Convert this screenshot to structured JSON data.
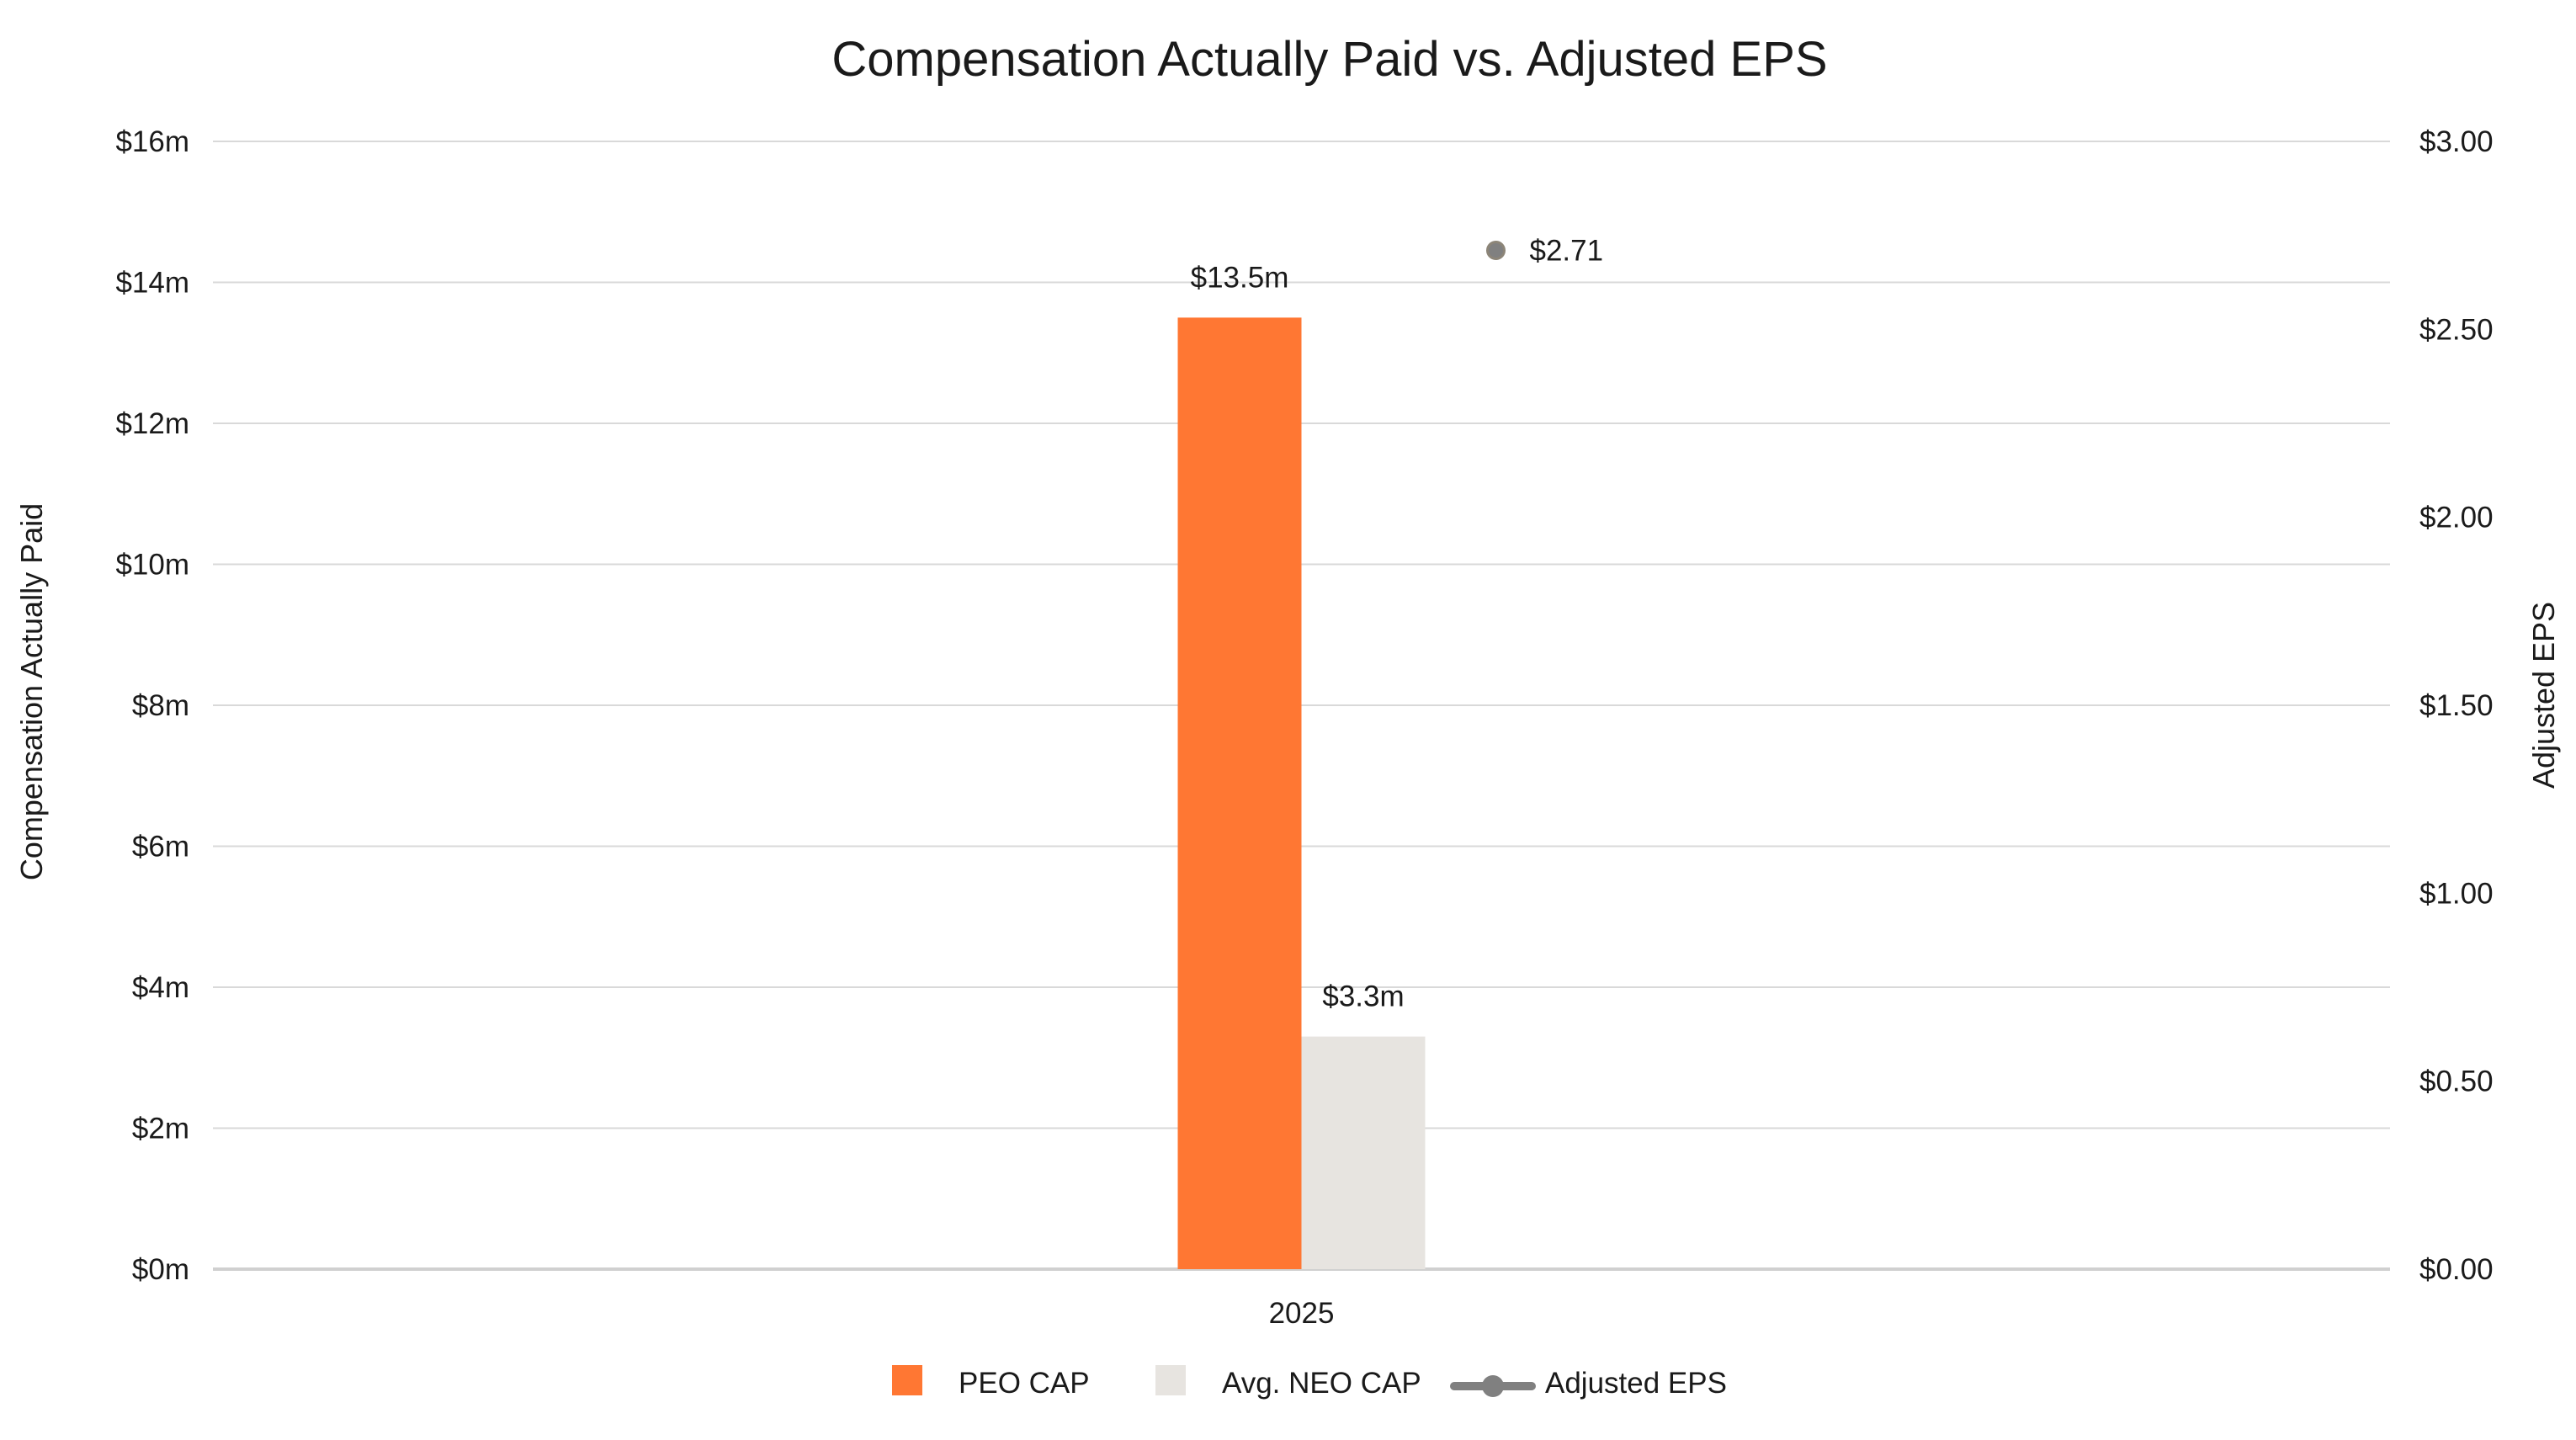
{
  "chart_data": {
    "type": "bar",
    "title": "Compensation Actually Paid vs. Adjusted EPS",
    "categories": [
      "2025"
    ],
    "ylabel": "Compensation Actually Paid",
    "y2label": "Adjusted EPS",
    "ylim": [
      0,
      16
    ],
    "y2lim": [
      0,
      3
    ],
    "yticks": [
      "$0m",
      "$2m",
      "$4m",
      "$6m",
      "$8m",
      "$10m",
      "$12m",
      "$14m",
      "$16m"
    ],
    "y2ticks": [
      "$0.00",
      "$0.50",
      "$1.00",
      "$1.50",
      "$2.00",
      "$2.50",
      "$3.00"
    ],
    "grid": true,
    "legend_position": "bottom",
    "series": [
      {
        "name": "PEO CAP",
        "type": "bar",
        "values": [
          13.5
        ],
        "labels": [
          "$13.5m"
        ],
        "color": "#FF7733"
      },
      {
        "name": "Avg. NEO CAP",
        "type": "bar",
        "values": [
          3.3
        ],
        "labels": [
          "$3.3m"
        ],
        "color": "#E7E4E0"
      },
      {
        "name": "Adjusted EPS",
        "type": "line",
        "axis": "right",
        "values": [
          2.71
        ],
        "labels": [
          "$2.71"
        ],
        "color": "#808080"
      }
    ]
  }
}
